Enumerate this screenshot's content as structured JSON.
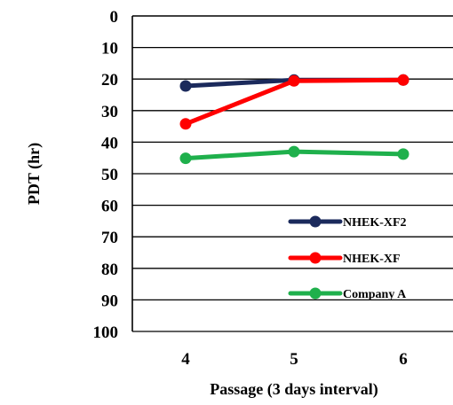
{
  "chart_data": {
    "type": "line",
    "xlabel": "Passage (3 days interval)",
    "ylabel": "PDT (hr)",
    "categories": [
      "4",
      "5",
      "6"
    ],
    "ylim": [
      0,
      100
    ],
    "y_inverted": true,
    "yticks": [
      0,
      10,
      20,
      30,
      40,
      50,
      60,
      70,
      80,
      90,
      100
    ],
    "grid": "horizontal",
    "legend_position": "bottom-right",
    "series": [
      {
        "name": "NHEK-XF2",
        "color": "#1b2a5c",
        "values": [
          22.2,
          20.3,
          20.3
        ]
      },
      {
        "name": "NHEK-XF",
        "color": "#ff0000",
        "values": [
          34.2,
          20.6,
          20.3
        ]
      },
      {
        "name": "Company A",
        "color": "#1fb04c",
        "values": [
          45.1,
          43.0,
          43.8
        ]
      }
    ]
  }
}
